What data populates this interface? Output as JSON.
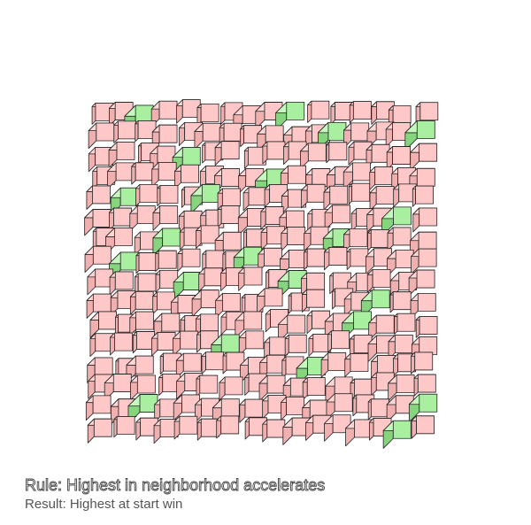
{
  "caption": {
    "rule": "Rule: Highest in neighborhood accelerates",
    "result": "Result: Highest at start win"
  },
  "colors": {
    "background": "#ffffff",
    "block_normal": "#ffc8c8",
    "block_normal_top": "#ffd6d6",
    "block_normal_side": "#f0b0b0",
    "block_highest": "#a8f0a0",
    "block_highest_top": "#c4f8bc",
    "block_highest_side": "#86d47e",
    "outline": "#222222"
  },
  "grid": {
    "columns": 16,
    "rows": 16,
    "highest_cells": [
      [
        0,
        2
      ],
      [
        0,
        9
      ],
      [
        1,
        11
      ],
      [
        1,
        15
      ],
      [
        2,
        4
      ],
      [
        3,
        8
      ],
      [
        4,
        1
      ],
      [
        4,
        5
      ],
      [
        5,
        14
      ],
      [
        6,
        3
      ],
      [
        6,
        11
      ],
      [
        7,
        1
      ],
      [
        7,
        7
      ],
      [
        8,
        4
      ],
      [
        8,
        9
      ],
      [
        9,
        13
      ],
      [
        10,
        12
      ],
      [
        11,
        6
      ],
      [
        12,
        10
      ],
      [
        14,
        2
      ],
      [
        14,
        15
      ],
      [
        15,
        14
      ]
    ]
  }
}
